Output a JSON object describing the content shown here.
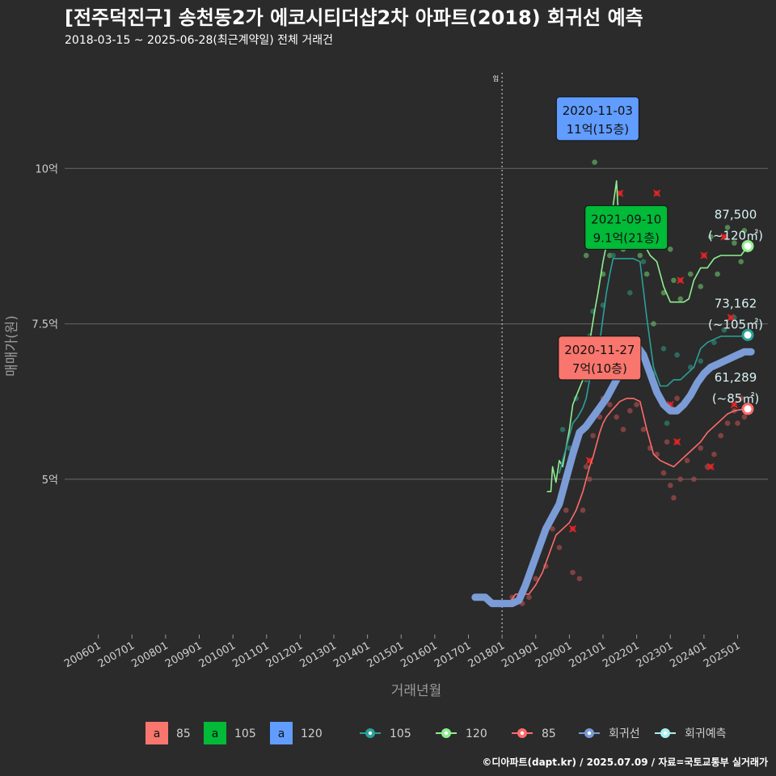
{
  "header": {
    "title": "[전주덕진구] 송천동2가 에코시티더샵2차 아파트(2018) 회귀선 예측",
    "subtitle": "2018-03-15 ~ 2025-06-28(최근계약일) 전체 거래건"
  },
  "footer": {
    "credit": "©디아파트(dapt.kr) / 2025.07.09 / 자료=국토교통부 실거래가"
  },
  "colors": {
    "bg": "#2b2b2b",
    "grid": "#5a5a5a",
    "s85": "#f8766d",
    "s105": "#00ba38",
    "s120": "#619cff",
    "l105": "#2aa198",
    "l120": "#90ee90",
    "l85": "#ff6b6b",
    "reg": "#7b9cd6",
    "pred": "#aaf0f0"
  },
  "chart_data": {
    "type": "line",
    "xlabel": "거래년월",
    "ylabel": "매매가(원)",
    "x_ticks": [
      "200601",
      "200701",
      "200801",
      "200901",
      "201001",
      "201101",
      "201201",
      "201301",
      "201401",
      "201501",
      "201601",
      "201701",
      "201801",
      "201901",
      "202001",
      "202101",
      "202201",
      "202301",
      "202401",
      "202501"
    ],
    "y_ticks": [
      {
        "value": 5,
        "label": "5억"
      },
      {
        "value": 7.5,
        "label": "7.5억"
      },
      {
        "value": 10,
        "label": "10억"
      }
    ],
    "ylim": [
      2.5,
      11.8
    ],
    "xlim": [
      2005.0,
      2025.9
    ],
    "vline": {
      "x": 2018.0,
      "label": "입"
    },
    "annotations": [
      {
        "date": "2020-11-03",
        "price": "11억(15층)",
        "series": "120",
        "x": 2020.84,
        "y": 10.8
      },
      {
        "date": "2021-09-10",
        "price": "9.1억(21층)",
        "series": "105",
        "x": 2021.69,
        "y": 9.05
      },
      {
        "date": "2020-11-27",
        "price": "7억(10층)",
        "series": "85",
        "x": 2020.9,
        "y": 6.95
      }
    ],
    "end_labels": [
      {
        "value": "87,500",
        "area": "(~120㎡)",
        "y": 8.75
      },
      {
        "value": "73,162",
        "area": "(~105㎡)",
        "y": 7.32
      },
      {
        "value": "61,289",
        "area": "(~85㎡)",
        "y": 6.13
      }
    ],
    "series": [
      {
        "name": "120",
        "color": "#90ee90",
        "points": [
          [
            2019.35,
            4.8
          ],
          [
            2019.45,
            4.8
          ],
          [
            2019.5,
            5.2
          ],
          [
            2019.6,
            4.95
          ],
          [
            2019.7,
            5.3
          ],
          [
            2019.8,
            5.2
          ],
          [
            2019.9,
            5.5
          ],
          [
            2020.0,
            5.8
          ],
          [
            2020.1,
            6.2
          ],
          [
            2020.25,
            6.4
          ],
          [
            2020.4,
            6.6
          ],
          [
            2020.5,
            6.9
          ],
          [
            2020.6,
            7.2
          ],
          [
            2020.75,
            7.7
          ],
          [
            2020.85,
            8.0
          ],
          [
            2021.0,
            8.5
          ],
          [
            2021.15,
            8.9
          ],
          [
            2021.3,
            9.4
          ],
          [
            2021.4,
            9.8
          ],
          [
            2021.45,
            9.3
          ],
          [
            2021.6,
            9.1
          ],
          [
            2021.8,
            9.1
          ],
          [
            2022.0,
            9.0
          ],
          [
            2022.2,
            8.8
          ],
          [
            2022.4,
            8.6
          ],
          [
            2022.6,
            8.5
          ],
          [
            2022.8,
            8.1
          ],
          [
            2023.0,
            7.85
          ],
          [
            2023.2,
            7.85
          ],
          [
            2023.4,
            7.85
          ],
          [
            2023.55,
            7.9
          ],
          [
            2023.7,
            8.2
          ],
          [
            2023.9,
            8.4
          ],
          [
            2024.1,
            8.4
          ],
          [
            2024.3,
            8.55
          ],
          [
            2024.5,
            8.6
          ],
          [
            2024.7,
            8.6
          ],
          [
            2024.9,
            8.6
          ],
          [
            2025.1,
            8.6
          ],
          [
            2025.3,
            8.75
          ]
        ]
      },
      {
        "name": "105",
        "color": "#2aa198",
        "points": [
          [
            2019.7,
            5.1
          ],
          [
            2019.85,
            5.4
          ],
          [
            2020.0,
            5.7
          ],
          [
            2020.1,
            5.9
          ],
          [
            2020.25,
            6.0
          ],
          [
            2020.4,
            6.15
          ],
          [
            2020.5,
            6.3
          ],
          [
            2020.6,
            6.6
          ],
          [
            2020.75,
            6.9
          ],
          [
            2020.9,
            7.2
          ],
          [
            2021.0,
            7.6
          ],
          [
            2021.1,
            8.0
          ],
          [
            2021.2,
            8.3
          ],
          [
            2021.3,
            8.55
          ],
          [
            2021.5,
            8.55
          ],
          [
            2021.7,
            8.55
          ],
          [
            2021.9,
            8.55
          ],
          [
            2022.1,
            8.5
          ],
          [
            2022.3,
            7.6
          ],
          [
            2022.5,
            6.8
          ],
          [
            2022.7,
            6.5
          ],
          [
            2022.9,
            6.5
          ],
          [
            2023.1,
            6.6
          ],
          [
            2023.3,
            6.6
          ],
          [
            2023.5,
            6.7
          ],
          [
            2023.7,
            6.8
          ],
          [
            2023.9,
            7.1
          ],
          [
            2024.1,
            7.2
          ],
          [
            2024.3,
            7.25
          ],
          [
            2024.5,
            7.3
          ],
          [
            2024.7,
            7.3
          ],
          [
            2024.9,
            7.3
          ],
          [
            2025.1,
            7.3
          ],
          [
            2025.3,
            7.32
          ]
        ]
      },
      {
        "name": "85",
        "color": "#ff6b6b",
        "points": [
          [
            2017.8,
            3.05
          ],
          [
            2018.0,
            3.0
          ],
          [
            2018.2,
            3.0
          ],
          [
            2018.4,
            3.15
          ],
          [
            2018.6,
            3.15
          ],
          [
            2018.8,
            3.15
          ],
          [
            2019.0,
            3.3
          ],
          [
            2019.2,
            3.5
          ],
          [
            2019.4,
            3.8
          ],
          [
            2019.6,
            4.1
          ],
          [
            2019.8,
            4.2
          ],
          [
            2020.0,
            4.3
          ],
          [
            2020.2,
            4.5
          ],
          [
            2020.4,
            4.8
          ],
          [
            2020.5,
            5.0
          ],
          [
            2020.6,
            5.2
          ],
          [
            2020.7,
            5.35
          ],
          [
            2020.8,
            5.55
          ],
          [
            2020.9,
            5.75
          ],
          [
            2021.0,
            5.9
          ],
          [
            2021.1,
            6.0
          ],
          [
            2021.25,
            6.1
          ],
          [
            2021.5,
            6.25
          ],
          [
            2021.7,
            6.3
          ],
          [
            2021.9,
            6.3
          ],
          [
            2022.1,
            6.25
          ],
          [
            2022.3,
            5.8
          ],
          [
            2022.5,
            5.4
          ],
          [
            2022.7,
            5.3
          ],
          [
            2022.9,
            5.25
          ],
          [
            2023.1,
            5.2
          ],
          [
            2023.3,
            5.3
          ],
          [
            2023.5,
            5.4
          ],
          [
            2023.7,
            5.5
          ],
          [
            2023.9,
            5.6
          ],
          [
            2024.1,
            5.75
          ],
          [
            2024.3,
            5.85
          ],
          [
            2024.5,
            5.95
          ],
          [
            2024.7,
            6.05
          ],
          [
            2024.9,
            6.1
          ],
          [
            2025.1,
            6.12
          ],
          [
            2025.3,
            6.13
          ]
        ]
      },
      {
        "name": "회귀선",
        "color": "#7b9cd6",
        "points": [
          [
            2017.2,
            3.1
          ],
          [
            2017.5,
            3.1
          ],
          [
            2017.7,
            3.0
          ],
          [
            2018.0,
            3.0
          ],
          [
            2018.3,
            3.0
          ],
          [
            2018.5,
            3.05
          ],
          [
            2018.7,
            3.3
          ],
          [
            2018.9,
            3.6
          ],
          [
            2019.1,
            3.9
          ],
          [
            2019.3,
            4.2
          ],
          [
            2019.5,
            4.4
          ],
          [
            2019.7,
            4.6
          ],
          [
            2019.9,
            5.0
          ],
          [
            2020.1,
            5.4
          ],
          [
            2020.3,
            5.75
          ],
          [
            2020.5,
            5.85
          ],
          [
            2020.7,
            6.0
          ],
          [
            2020.9,
            6.15
          ],
          [
            2021.1,
            6.3
          ],
          [
            2021.3,
            6.5
          ],
          [
            2021.5,
            6.7
          ],
          [
            2021.7,
            6.9
          ],
          [
            2021.9,
            7.1
          ],
          [
            2022.0,
            7.15
          ],
          [
            2022.2,
            7.0
          ],
          [
            2022.4,
            6.7
          ],
          [
            2022.6,
            6.4
          ],
          [
            2022.8,
            6.2
          ],
          [
            2023.0,
            6.1
          ],
          [
            2023.2,
            6.1
          ],
          [
            2023.4,
            6.2
          ],
          [
            2023.6,
            6.35
          ],
          [
            2023.8,
            6.55
          ],
          [
            2024.0,
            6.7
          ],
          [
            2024.2,
            6.8
          ],
          [
            2024.4,
            6.85
          ],
          [
            2024.6,
            6.9
          ],
          [
            2024.8,
            6.95
          ],
          [
            2025.0,
            7.0
          ],
          [
            2025.2,
            7.05
          ],
          [
            2025.4,
            7.05
          ]
        ]
      }
    ],
    "end_points": [
      {
        "series": "120",
        "x": 2025.3,
        "y": 8.75,
        "color": "#90ee90"
      },
      {
        "series": "105",
        "x": 2025.3,
        "y": 7.32,
        "color": "#2aa198"
      },
      {
        "series": "85",
        "x": 2025.3,
        "y": 6.13,
        "color": "#ff6b6b"
      }
    ],
    "scatter": {
      "s120": [
        [
          2020.75,
          10.1
        ],
        [
          2020.84,
          11.0
        ],
        [
          2020.5,
          8.6
        ],
        [
          2021.0,
          8.3
        ],
        [
          2021.2,
          8.6
        ],
        [
          2021.4,
          9.05
        ],
        [
          2021.6,
          8.7
        ],
        [
          2021.9,
          8.8
        ],
        [
          2022.1,
          8.6
        ],
        [
          2022.3,
          8.3
        ],
        [
          2022.5,
          7.5
        ],
        [
          2022.8,
          8.0
        ],
        [
          2023.0,
          8.7
        ],
        [
          2023.1,
          8.2
        ],
        [
          2023.3,
          7.9
        ],
        [
          2023.6,
          8.3
        ],
        [
          2023.9,
          8.1
        ],
        [
          2024.2,
          8.9
        ],
        [
          2024.4,
          8.3
        ],
        [
          2024.7,
          9.05
        ],
        [
          2024.9,
          8.8
        ],
        [
          2025.1,
          8.5
        ],
        [
          2025.2,
          9.0
        ],
        [
          2020.3,
          7.2
        ],
        [
          2020.2,
          6.9
        ]
      ],
      "s105": [
        [
          2019.8,
          5.8
        ],
        [
          2020.0,
          5.5
        ],
        [
          2020.2,
          6.3
        ],
        [
          2020.4,
          6.7
        ],
        [
          2020.6,
          7.3
        ],
        [
          2020.7,
          7.7
        ],
        [
          2021.0,
          7.8
        ],
        [
          2021.3,
          8.6
        ],
        [
          2021.69,
          9.1
        ],
        [
          2021.8,
          8.0
        ],
        [
          2022.2,
          8.5
        ],
        [
          2022.5,
          6.7
        ],
        [
          2022.8,
          7.1
        ],
        [
          2023.2,
          7.0
        ],
        [
          2023.6,
          6.8
        ],
        [
          2023.9,
          6.9
        ],
        [
          2024.3,
          7.2
        ],
        [
          2024.6,
          7.4
        ],
        [
          2024.9,
          7.6
        ],
        [
          2025.1,
          7.0
        ],
        [
          2025.3,
          7.3
        ],
        [
          2020.5,
          6.6
        ],
        [
          2023.4,
          6.2
        ],
        [
          2022.9,
          5.9
        ]
      ],
      "s85": [
        [
          2018.3,
          3.1
        ],
        [
          2018.6,
          3.0
        ],
        [
          2018.8,
          3.1
        ],
        [
          2019.0,
          3.4
        ],
        [
          2019.3,
          3.6
        ],
        [
          2019.5,
          4.2
        ],
        [
          2019.7,
          3.9
        ],
        [
          2019.9,
          4.5
        ],
        [
          2020.1,
          3.5
        ],
        [
          2020.3,
          3.4
        ],
        [
          2020.4,
          4.5
        ],
        [
          2020.5,
          5.2
        ],
        [
          2020.6,
          5.0
        ],
        [
          2020.7,
          5.7
        ],
        [
          2020.9,
          6.0
        ],
        [
          2021.0,
          6.3
        ],
        [
          2021.2,
          6.2
        ],
        [
          2021.4,
          6.0
        ],
        [
          2021.6,
          5.8
        ],
        [
          2021.8,
          6.1
        ],
        [
          2022.0,
          6.2
        ],
        [
          2022.2,
          5.8
        ],
        [
          2022.4,
          5.5
        ],
        [
          2022.6,
          5.4
        ],
        [
          2022.8,
          5.1
        ],
        [
          2023.0,
          4.9
        ],
        [
          2023.1,
          4.7
        ],
        [
          2023.3,
          5.0
        ],
        [
          2023.5,
          5.3
        ],
        [
          2023.7,
          5.0
        ],
        [
          2023.9,
          5.5
        ],
        [
          2024.1,
          5.2
        ],
        [
          2024.3,
          5.4
        ],
        [
          2024.5,
          5.7
        ],
        [
          2024.7,
          5.9
        ],
        [
          2024.9,
          6.1
        ],
        [
          2025.0,
          5.9
        ],
        [
          2025.1,
          6.3
        ],
        [
          2025.2,
          6.0
        ],
        [
          2023.2,
          6.3
        ],
        [
          2022.9,
          5.6
        ],
        [
          2020.9,
          7.0
        ]
      ],
      "crossed": [
        [
          2021.5,
          9.6
        ],
        [
          2022.6,
          9.6
        ],
        [
          2023.3,
          8.2
        ],
        [
          2024.0,
          8.6
        ],
        [
          2024.6,
          8.9
        ],
        [
          2024.8,
          7.6
        ],
        [
          2023.2,
          5.6
        ],
        [
          2023.0,
          6.2
        ],
        [
          2020.1,
          4.2
        ],
        [
          2020.6,
          5.3
        ],
        [
          2024.9,
          6.2
        ],
        [
          2024.2,
          5.2
        ]
      ]
    },
    "legend": {
      "fill": [
        {
          "key": "a",
          "label": "85",
          "color": "#f8766d"
        },
        {
          "key": "a",
          "label": "105",
          "color": "#00ba38"
        },
        {
          "key": "a",
          "label": "120",
          "color": "#619cff"
        }
      ],
      "lines": [
        {
          "label": "105",
          "color": "#2aa198"
        },
        {
          "label": "120",
          "color": "#90ee90"
        },
        {
          "label": "85",
          "color": "#ff6b6b"
        },
        {
          "label": "회귀선",
          "color": "#7b9cd6"
        },
        {
          "label": "회귀예측",
          "color": "#aaf0f0"
        }
      ]
    }
  }
}
